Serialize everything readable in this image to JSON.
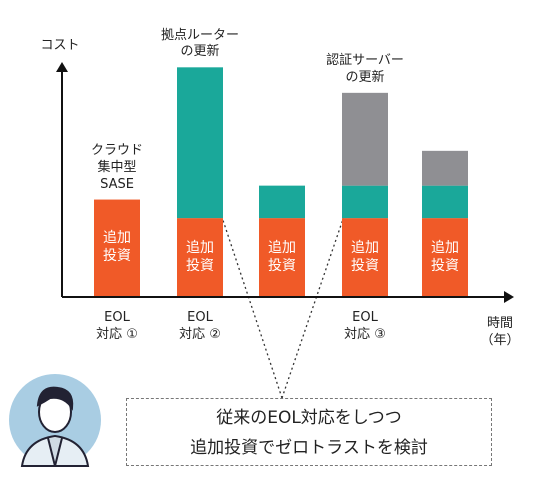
{
  "chart_data": {
    "type": "stacked_bar",
    "y_label": "コスト",
    "x_label": "時間\n（年）",
    "categories": [
      "EOL\n対応 ①",
      "EOL\n対応 ②",
      null,
      "EOL\n対応 ③",
      null
    ],
    "annotations": [
      "クラウド\n集中型\nSASE",
      "拠点ルーター\nの更新",
      null,
      "認証サーバー\nの更新",
      null
    ],
    "series": [
      {
        "name": "追加\n投資",
        "color": "#f05a28",
        "values": [
          42,
          34,
          34,
          34,
          34
        ]
      },
      {
        "color": "#1aa89a",
        "values": [
          null,
          65,
          14,
          14,
          14
        ]
      },
      {
        "color": "#8f8f93",
        "values": [
          null,
          null,
          null,
          40,
          15
        ]
      }
    ],
    "ylim": [
      0,
      100
    ],
    "callout": "従来のEOL対応をしつつ\n追加投資でゼロトラストを検討"
  }
}
